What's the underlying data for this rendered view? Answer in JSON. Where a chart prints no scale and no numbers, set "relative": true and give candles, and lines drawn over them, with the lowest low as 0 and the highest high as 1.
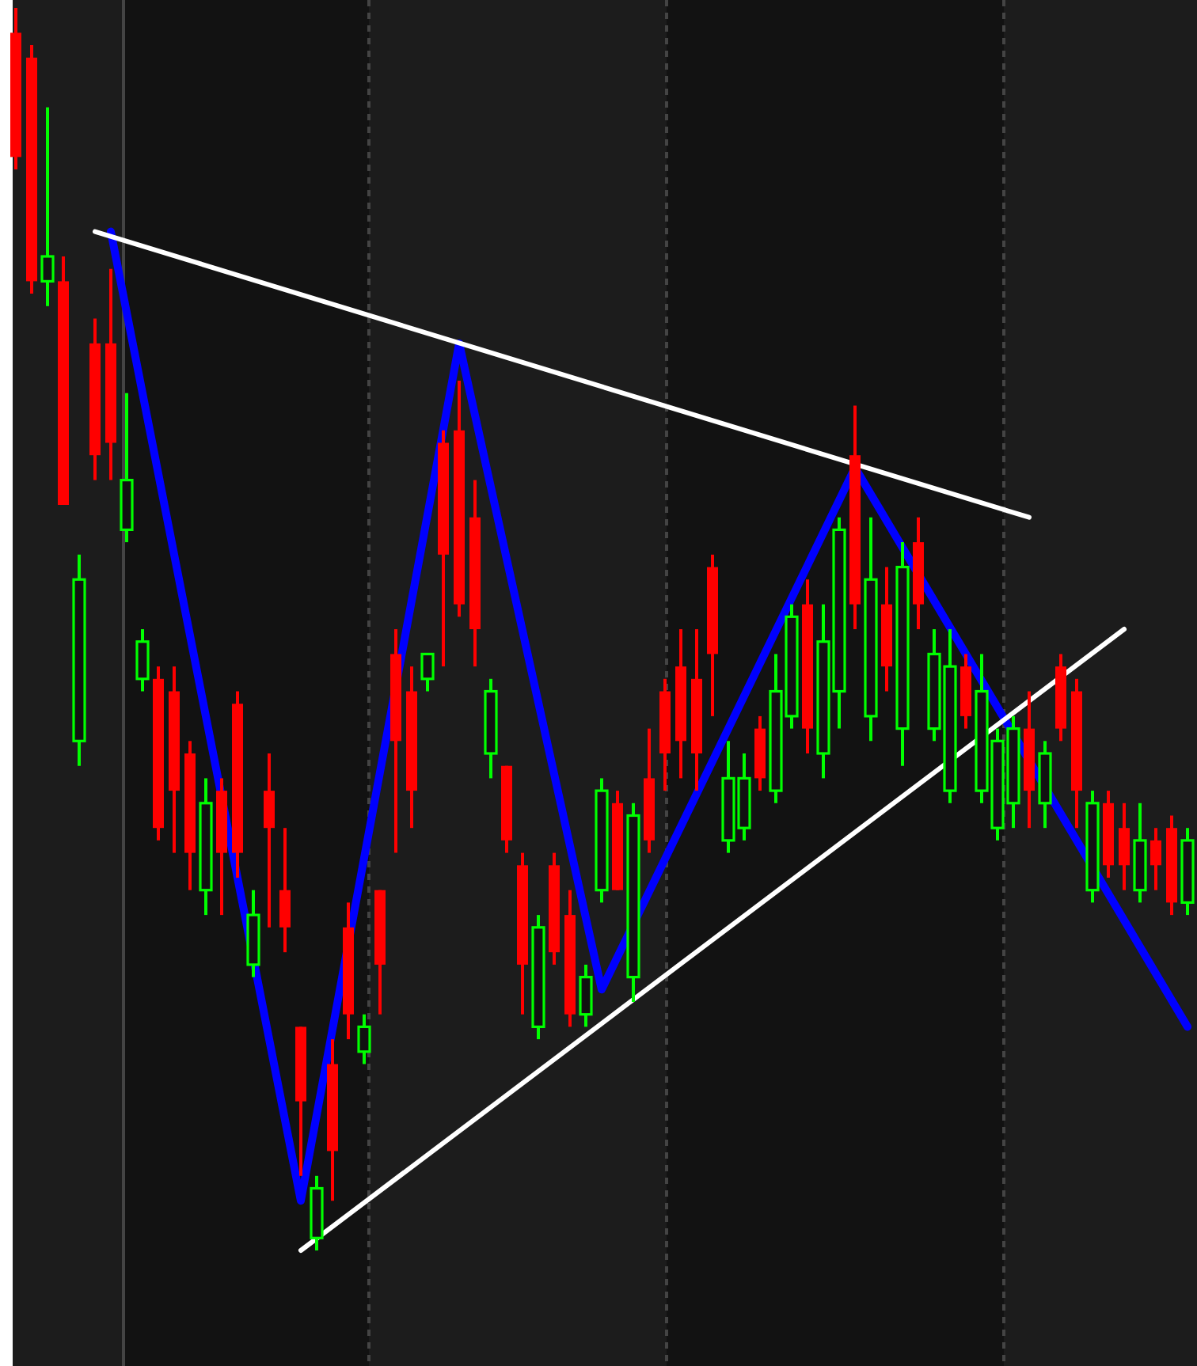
{
  "chart_data": {
    "type": "candlestick",
    "relative": true,
    "categories": [
      null,
      null,
      null,
      null,
      null,
      null,
      null,
      null,
      null,
      null,
      null,
      null,
      null,
      null,
      null,
      null,
      null,
      null,
      null,
      null,
      null,
      null,
      null,
      null,
      null,
      null,
      null,
      null,
      null,
      null,
      null,
      null,
      null,
      null,
      null,
      null,
      null,
      null,
      null,
      null,
      null,
      null,
      null,
      null,
      null,
      null,
      null,
      null,
      null,
      null,
      null,
      null,
      null,
      null,
      null,
      null,
      null,
      null,
      null,
      null,
      null,
      null,
      null,
      null,
      null,
      null,
      null,
      null,
      null,
      null,
      null,
      null,
      null,
      null,
      null
    ],
    "ohlc": [
      [
        0.98,
        1.0,
        0.87,
        0.88
      ],
      [
        0.96,
        0.97,
        0.77,
        0.78
      ],
      [
        0.78,
        0.92,
        0.76,
        0.8
      ],
      [
        0.78,
        0.8,
        0.6,
        0.6
      ],
      [
        0.41,
        0.56,
        0.39,
        0.54
      ],
      [
        0.73,
        0.75,
        0.62,
        0.64
      ],
      [
        0.73,
        0.79,
        0.62,
        0.65
      ],
      [
        0.58,
        0.69,
        0.57,
        0.62
      ],
      [
        0.46,
        0.5,
        0.45,
        0.49
      ],
      [
        0.46,
        0.47,
        0.33,
        0.34
      ],
      [
        0.45,
        0.47,
        0.32,
        0.37
      ],
      [
        0.4,
        0.41,
        0.29,
        0.32
      ],
      [
        0.29,
        0.38,
        0.27,
        0.36
      ],
      [
        0.37,
        0.38,
        0.27,
        0.32
      ],
      [
        0.44,
        0.45,
        0.3,
        0.32
      ],
      [
        0.23,
        0.29,
        0.22,
        0.27
      ],
      [
        0.37,
        0.4,
        0.26,
        0.34
      ],
      [
        0.29,
        0.34,
        0.24,
        0.26
      ],
      [
        0.18,
        0.18,
        0.06,
        0.12
      ],
      [
        0.01,
        0.06,
        0.0,
        0.05
      ],
      [
        0.15,
        0.17,
        0.04,
        0.08
      ],
      [
        0.26,
        0.28,
        0.17,
        0.19
      ],
      [
        0.16,
        0.19,
        0.15,
        0.18
      ],
      [
        0.29,
        0.29,
        0.19,
        0.23
      ],
      [
        0.48,
        0.5,
        0.32,
        0.41
      ],
      [
        0.45,
        0.47,
        0.34,
        0.37
      ],
      [
        0.46,
        0.48,
        0.45,
        0.48
      ],
      [
        0.65,
        0.66,
        0.47,
        0.56
      ],
      [
        0.66,
        0.7,
        0.51,
        0.52
      ],
      [
        0.59,
        0.62,
        0.47,
        0.5
      ],
      [
        0.4,
        0.46,
        0.38,
        0.45
      ],
      [
        0.39,
        0.39,
        0.32,
        0.33
      ],
      [
        0.31,
        0.32,
        0.19,
        0.23
      ],
      [
        0.18,
        0.27,
        0.17,
        0.26
      ],
      [
        0.31,
        0.32,
        0.23,
        0.24
      ],
      [
        0.27,
        0.29,
        0.18,
        0.19
      ],
      [
        0.19,
        0.23,
        0.18,
        0.22
      ],
      [
        0.29,
        0.38,
        0.28,
        0.37
      ],
      [
        0.36,
        0.37,
        0.29,
        0.29
      ],
      [
        0.22,
        0.36,
        0.2,
        0.35
      ],
      [
        0.38,
        0.42,
        0.32,
        0.33
      ],
      [
        0.45,
        0.46,
        0.37,
        0.4
      ],
      [
        0.47,
        0.5,
        0.38,
        0.41
      ],
      [
        0.46,
        0.5,
        0.37,
        0.4
      ],
      [
        0.55,
        0.56,
        0.43,
        0.48
      ],
      [
        0.33,
        0.41,
        0.32,
        0.38
      ],
      [
        0.34,
        0.4,
        0.33,
        0.38
      ],
      [
        0.42,
        0.43,
        0.37,
        0.38
      ],
      [
        0.37,
        0.48,
        0.36,
        0.45
      ],
      [
        0.43,
        0.52,
        0.42,
        0.51
      ],
      [
        0.52,
        0.54,
        0.4,
        0.42
      ],
      [
        0.4,
        0.52,
        0.38,
        0.49
      ],
      [
        0.45,
        0.59,
        0.42,
        0.58
      ],
      [
        0.64,
        0.68,
        0.5,
        0.52
      ],
      [
        0.43,
        0.59,
        0.41,
        0.54
      ],
      [
        0.52,
        0.55,
        0.45,
        0.47
      ],
      [
        0.42,
        0.57,
        0.39,
        0.55
      ],
      [
        0.57,
        0.59,
        0.5,
        0.52
      ],
      [
        0.42,
        0.5,
        0.41,
        0.48
      ],
      [
        0.37,
        0.5,
        0.36,
        0.47
      ],
      [
        0.47,
        0.48,
        0.42,
        0.43
      ],
      [
        0.37,
        0.48,
        0.36,
        0.45
      ],
      [
        0.34,
        0.42,
        0.33,
        0.41
      ],
      [
        0.36,
        0.43,
        0.34,
        0.42
      ],
      [
        0.42,
        0.45,
        0.34,
        0.37
      ],
      [
        0.36,
        0.41,
        0.34,
        0.4
      ],
      [
        0.47,
        0.48,
        0.41,
        0.42
      ],
      [
        0.45,
        0.46,
        0.34,
        0.37
      ],
      [
        0.29,
        0.37,
        0.28,
        0.36
      ],
      [
        0.36,
        0.37,
        0.3,
        0.31
      ],
      [
        0.34,
        0.36,
        0.29,
        0.31
      ],
      [
        0.29,
        0.36,
        0.28,
        0.33
      ],
      [
        0.33,
        0.34,
        0.29,
        0.31
      ],
      [
        0.34,
        0.35,
        0.27,
        0.28
      ],
      [
        0.28,
        0.34,
        0.27,
        0.33
      ]
    ],
    "colors": [
      "#ff0000",
      "#ff0000",
      "#00ff00",
      "#ff0000",
      "#00ff00",
      "#ff0000",
      "#ff0000",
      "#00ff00",
      "#00ff00",
      "#ff0000",
      "#ff0000",
      "#ff0000",
      "#00ff00",
      "#ff0000",
      "#ff0000",
      "#00ff00",
      "#ff0000",
      "#ff0000",
      "#ff0000",
      "#00ff00",
      "#ff0000",
      "#ff0000",
      "#00ff00",
      "#ff0000",
      "#ff0000",
      "#ff0000",
      "#00ff00",
      "#ff0000",
      "#ff0000",
      "#ff0000",
      "#00ff00",
      "#ff0000",
      "#ff0000",
      "#00ff00",
      "#ff0000",
      "#ff0000",
      "#00ff00",
      "#00ff00",
      "#ff0000",
      "#00ff00",
      "#ff0000",
      "#ff0000",
      "#ff0000",
      "#ff0000",
      "#ff0000",
      "#00ff00",
      "#00ff00",
      "#ff0000",
      "#00ff00",
      "#00ff00",
      "#ff0000",
      "#00ff00",
      "#00ff00",
      "#ff0000",
      "#00ff00",
      "#ff0000",
      "#00ff00",
      "#ff0000",
      "#00ff00",
      "#00ff00",
      "#ff0000",
      "#00ff00",
      "#00ff00",
      "#00ff00",
      "#ff0000",
      "#00ff00",
      "#ff0000",
      "#ff0000",
      "#00ff00",
      "#ff0000",
      "#ff0000",
      "#00ff00",
      "#ff0000",
      "#ff0000",
      "#00ff00"
    ],
    "series": [
      {
        "type": "line",
        "color": "#0000ff",
        "values": [
          null,
          null,
          null,
          null,
          null,
          null,
          0.82,
          null,
          null,
          null,
          null,
          null,
          null,
          null,
          null,
          null,
          null,
          null,
          0.04,
          null,
          null,
          null,
          null,
          null,
          null,
          null,
          null,
          null,
          0.73,
          null,
          null,
          null,
          null,
          null,
          null,
          null,
          null,
          0.21,
          null,
          null,
          null,
          null,
          null,
          null,
          null,
          null,
          null,
          null,
          null,
          null,
          null,
          null,
          null,
          0.63,
          null,
          null,
          null,
          null,
          null,
          null,
          null,
          null,
          null,
          null,
          null,
          null,
          null,
          null,
          null,
          null,
          null,
          null,
          null,
          null,
          0.18
        ]
      },
      {
        "type": "line",
        "color": "#ffffff",
        "values": [
          null,
          null,
          null,
          null,
          null,
          0.82,
          null,
          null,
          null,
          null,
          null,
          null,
          null,
          null,
          null,
          null,
          null,
          null,
          null,
          null,
          null,
          null,
          null,
          null,
          null,
          null,
          null,
          null,
          null,
          null,
          null,
          null,
          null,
          null,
          null,
          null,
          null,
          null,
          null,
          null,
          null,
          null,
          null,
          null,
          null,
          null,
          null,
          null,
          null,
          null,
          null,
          null,
          null,
          null,
          null,
          null,
          null,
          null,
          null,
          null,
          null,
          null,
          null,
          null,
          0.59,
          null,
          null,
          null,
          null,
          null,
          null,
          null,
          null,
          null,
          null
        ]
      },
      {
        "type": "line",
        "color": "#ffffff",
        "values": [
          null,
          null,
          null,
          null,
          null,
          null,
          null,
          null,
          null,
          null,
          null,
          null,
          null,
          null,
          null,
          null,
          null,
          null,
          0.0,
          null,
          null,
          null,
          null,
          null,
          null,
          null,
          null,
          null,
          null,
          null,
          null,
          null,
          null,
          null,
          null,
          null,
          null,
          null,
          null,
          null,
          null,
          null,
          null,
          null,
          null,
          null,
          null,
          null,
          null,
          null,
          null,
          null,
          null,
          null,
          null,
          null,
          null,
          null,
          null,
          null,
          null,
          null,
          null,
          null,
          null,
          null,
          null,
          null,
          null,
          null,
          0.5,
          null,
          null,
          null,
          null
        ]
      }
    ]
  }
}
